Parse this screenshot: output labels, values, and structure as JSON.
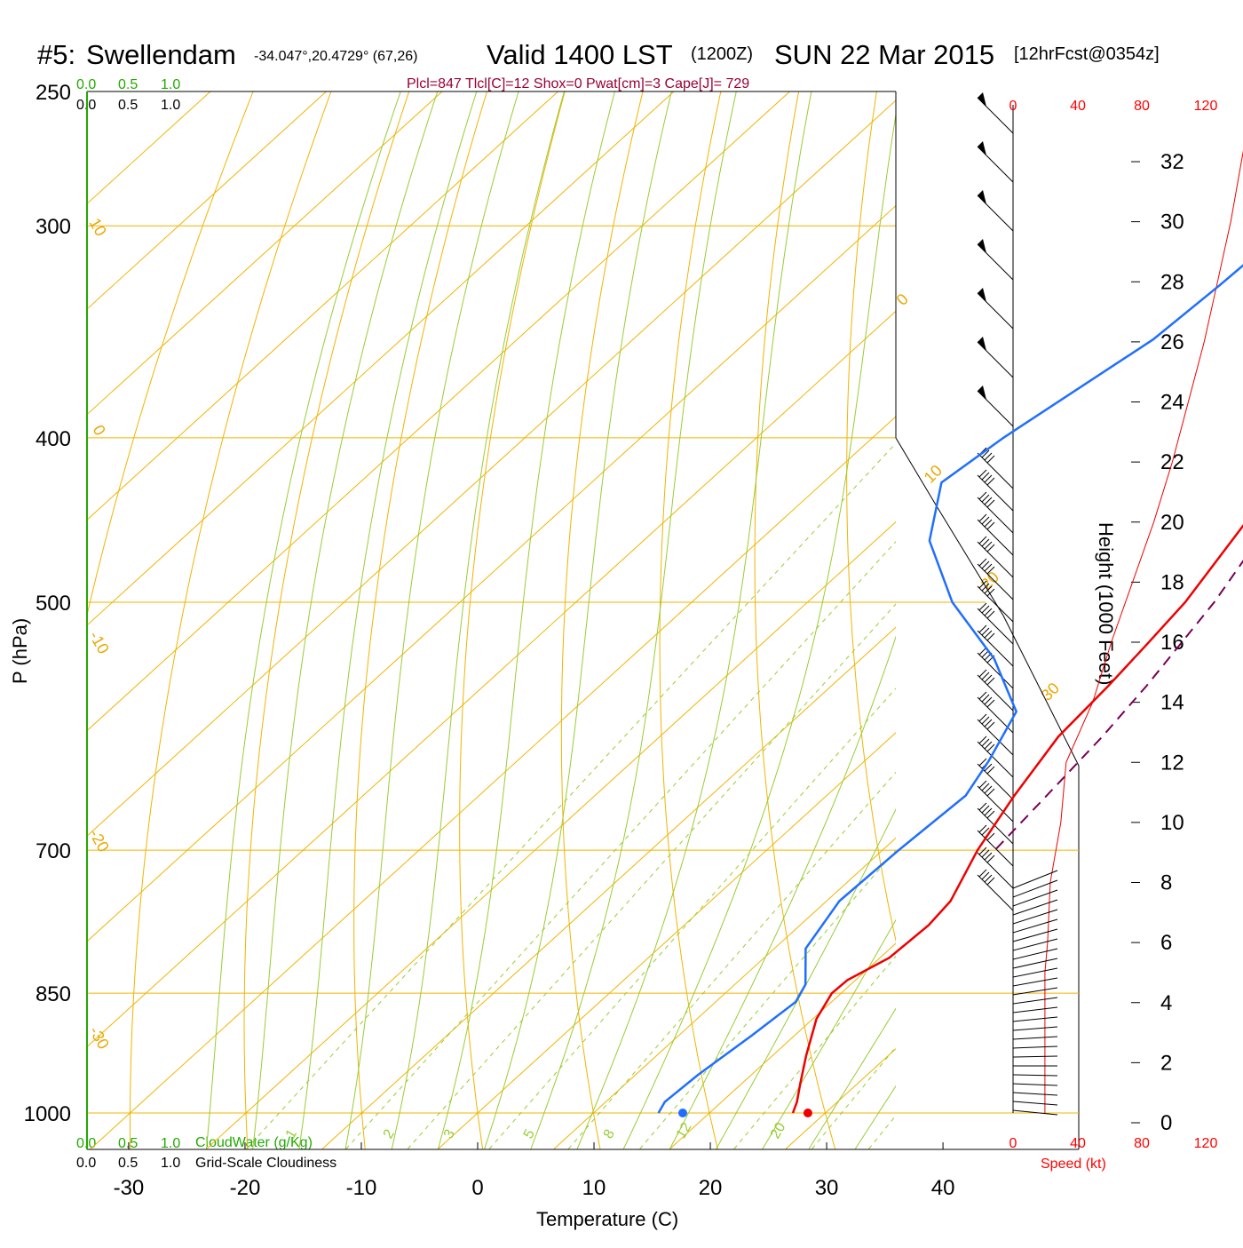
{
  "header": {
    "station_id": "#5:",
    "station_name": "Swellendam",
    "coords": "-34.047°,20.4729° (67,26)",
    "valid_prefix": "Valid 1400 LST",
    "valid_utc": "(1200Z)",
    "valid_date": "SUN 22 Mar 2015",
    "forecast": "[12hrFcst@0354z]"
  },
  "params_line": "Plcl=847 Tlcl[C]=12 Shox=0 Pwat[cm]=3 Cape[J]= 729",
  "cloud_legend": {
    "top_green": [
      "0.0",
      "0.5",
      "1.0"
    ],
    "top_black": [
      "0.0",
      "0.5",
      "1.0"
    ],
    "bottom_green": [
      "0.0",
      "0.5",
      "1.0"
    ],
    "bottom_black": [
      "0.0",
      "0.5",
      "1.0"
    ],
    "cloudwater_label": "CloudWater (g/Kg)",
    "cloudiness_label": "Grid-Scale Cloudiness"
  },
  "axes": {
    "x_label": "Temperature (C)",
    "y_label": "P (hPa)",
    "height_label": "Height (1000 Feet)",
    "speed_label": "Speed (kt)"
  },
  "chart_data": {
    "type": "line",
    "title": "#5: Swellendam -34.047°,20.4729° (67,26) Valid 1400 LST (1200Z) SUN 22 Mar 2015 [12hrFcst@0354z]",
    "xlabel": "Temperature (C)",
    "ylabel": "P (hPa)",
    "xlim": [
      -34,
      36
    ],
    "ylim": [
      1050,
      250
    ],
    "y_scale": "log",
    "x_ticks": [
      -30,
      -20,
      -10,
      0,
      10,
      20,
      30,
      40
    ],
    "p_ticks": [
      250,
      300,
      400,
      500,
      700,
      850,
      1000
    ],
    "height_axis": {
      "label": "Height (1000 Feet)",
      "ticks": [
        0,
        2,
        4,
        6,
        8,
        10,
        12,
        14,
        16,
        18,
        20,
        22,
        24,
        26,
        28,
        30,
        32
      ]
    },
    "speed_axis": {
      "label": "Speed (kt)",
      "ticks": [
        "0",
        "40",
        "80",
        "120"
      ]
    },
    "dry_adiabat_labels": [
      "10",
      "0",
      "-10",
      "-20",
      "-30",
      "0",
      "10",
      "20",
      "30"
    ],
    "mixing_ratio_labels": [
      "1",
      "2",
      "3",
      "5",
      "8",
      "12",
      "20"
    ],
    "series": [
      {
        "name": "Temperature",
        "color": "#ee0000",
        "points": [
          {
            "p": 268,
            "t": -1.8
          },
          {
            "p": 280,
            "t": -1.4
          },
          {
            "p": 300,
            "t": -0.2
          },
          {
            "p": 330,
            "t": 1.8
          },
          {
            "p": 360,
            "t": 4.4
          },
          {
            "p": 400,
            "t": 7.2
          },
          {
            "p": 450,
            "t": 10.3
          },
          {
            "p": 500,
            "t": 12.6
          },
          {
            "p": 530,
            "t": 13.3
          },
          {
            "p": 560,
            "t": 13.9
          },
          {
            "p": 600,
            "t": 14.4
          },
          {
            "p": 650,
            "t": 16.2
          },
          {
            "p": 700,
            "t": 18.2
          },
          {
            "p": 750,
            "t": 20.7
          },
          {
            "p": 775,
            "t": 21.1
          },
          {
            "p": 810,
            "t": 20.8
          },
          {
            "p": 835,
            "t": 19.3
          },
          {
            "p": 850,
            "t": 19.2
          },
          {
            "p": 880,
            "t": 20.3
          },
          {
            "p": 925,
            "t": 22.9
          },
          {
            "p": 960,
            "t": 25.0
          },
          {
            "p": 985,
            "t": 26.5
          },
          {
            "p": 1000,
            "t": 27.2
          }
        ],
        "surface_point": {
          "p": 1000,
          "t": 28.5
        }
      },
      {
        "name": "Dewpoint",
        "color": "#1f6fff",
        "points": [
          {
            "p": 265,
            "t": -14.5
          },
          {
            "p": 300,
            "t": -14.1
          },
          {
            "p": 325,
            "t": -14.5
          },
          {
            "p": 350,
            "t": -15.1
          },
          {
            "p": 400,
            "t": -18.7
          },
          {
            "p": 425,
            "t": -19.8
          },
          {
            "p": 460,
            "t": -15.3
          },
          {
            "p": 500,
            "t": -7.5
          },
          {
            "p": 540,
            "t": 1.5
          },
          {
            "p": 580,
            "t": 8.4
          },
          {
            "p": 620,
            "t": 10.7
          },
          {
            "p": 650,
            "t": 12.0
          },
          {
            "p": 700,
            "t": 11.4
          },
          {
            "p": 750,
            "t": 11.1
          },
          {
            "p": 800,
            "t": 12.7
          },
          {
            "p": 840,
            "t": 16.1
          },
          {
            "p": 860,
            "t": 16.9
          },
          {
            "p": 900,
            "t": 16.3
          },
          {
            "p": 950,
            "t": 15.4
          },
          {
            "p": 985,
            "t": 15.1
          },
          {
            "p": 1000,
            "t": 15.6
          }
        ],
        "surface_point": {
          "p": 1000,
          "t": 17.7
        }
      },
      {
        "name": "Parcel",
        "color": "#770055",
        "dashed": true,
        "points": [
          {
            "p": 285,
            "t": -0.3
          },
          {
            "p": 300,
            "t": 0.9
          },
          {
            "p": 340,
            "t": 4.6
          },
          {
            "p": 400,
            "t": 9.4
          },
          {
            "p": 460,
            "t": 13.0
          },
          {
            "p": 500,
            "t": 15.1
          },
          {
            "p": 560,
            "t": 17.2
          },
          {
            "p": 600,
            "t": 18.2
          },
          {
            "p": 650,
            "t": 19.0
          },
          {
            "p": 700,
            "t": 19.7
          }
        ]
      }
    ],
    "wind_speed_profile_kt": [
      {
        "kft": 0.3,
        "speed": 12
      },
      {
        "kft": 2,
        "speed": 12
      },
      {
        "kft": 5,
        "speed": 12
      },
      {
        "kft": 6,
        "speed": 13
      },
      {
        "kft": 8,
        "speed": 14
      },
      {
        "kft": 10,
        "speed": 18
      },
      {
        "kft": 12,
        "speed": 20
      },
      {
        "kft": 14,
        "speed": 30
      },
      {
        "kft": 16,
        "speed": 37
      },
      {
        "kft": 18,
        "speed": 45
      },
      {
        "kft": 20,
        "speed": 53
      },
      {
        "kft": 22,
        "speed": 60
      },
      {
        "kft": 24,
        "speed": 66
      },
      {
        "kft": 26,
        "speed": 72
      },
      {
        "kft": 28,
        "speed": 77
      },
      {
        "kft": 30,
        "speed": 82
      },
      {
        "kft": 32,
        "speed": 86
      },
      {
        "kft": 33,
        "speed": 88
      }
    ]
  }
}
